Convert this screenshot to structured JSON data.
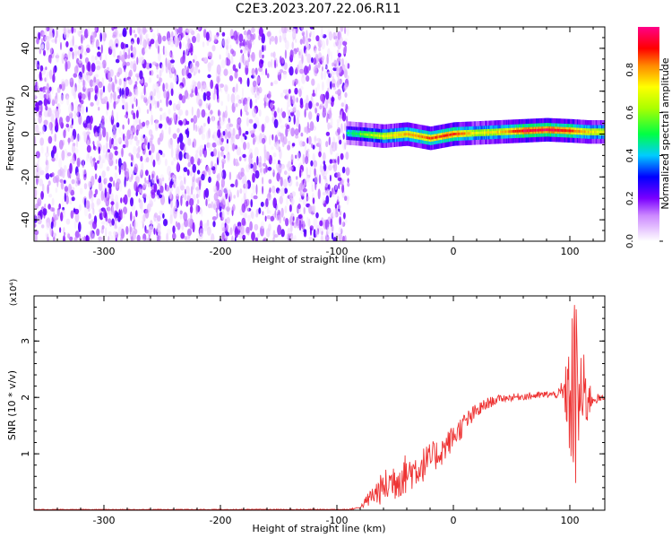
{
  "figure": {
    "title": "C2E3.2023.207.22.06.R11"
  },
  "chart_data": [
    {
      "type": "heatmap",
      "xlabel": "Height of straight line (km)",
      "ylabel": "Frequency (Hz)",
      "xlim": [
        -360,
        130
      ],
      "ylim": [
        -50,
        50
      ],
      "x_ticks": [
        -300,
        -200,
        -100,
        0,
        100
      ],
      "x_tick_labels": [
        "-300",
        "-200",
        "-100",
        "0",
        "100"
      ],
      "y_ticks": [
        40,
        20,
        0,
        -20,
        -40
      ],
      "y_tick_labels": [
        "40",
        "20",
        "0",
        "-20",
        "-40"
      ],
      "noise_region_x": [
        -360,
        -90
      ],
      "signal_line": {
        "x": [
          -92,
          -80,
          -60,
          -40,
          -20,
          0,
          20,
          40,
          60,
          80,
          100,
          115,
          130
        ],
        "freq": [
          0.5,
          0,
          -1,
          0,
          -2,
          0,
          0.5,
          1,
          1.5,
          2,
          1.5,
          1,
          1
        ],
        "amplitude": [
          0.45,
          0.55,
          0.7,
          0.8,
          0.85,
          0.9,
          0.7,
          0.75,
          0.95,
          0.95,
          0.9,
          0.75,
          0.7
        ]
      },
      "colorbar": {
        "label": "Normalized spectral amplitude",
        "range": [
          0,
          1
        ],
        "ticks": [
          0.0,
          0.2,
          0.4,
          0.6,
          0.8
        ],
        "tick_labels": [
          "0.0",
          "0.2",
          "0.4",
          "0.6",
          "0.8"
        ],
        "stops": [
          {
            "v": 0.0,
            "color": "#ffffff"
          },
          {
            "v": 0.12,
            "color": "#cc88ff"
          },
          {
            "v": 0.2,
            "color": "#7a00ff"
          },
          {
            "v": 0.3,
            "color": "#0000ff"
          },
          {
            "v": 0.4,
            "color": "#00ccff"
          },
          {
            "v": 0.5,
            "color": "#00ff44"
          },
          {
            "v": 0.62,
            "color": "#aaff00"
          },
          {
            "v": 0.72,
            "color": "#ffff00"
          },
          {
            "v": 0.82,
            "color": "#ff8800"
          },
          {
            "v": 0.9,
            "color": "#ff0000"
          },
          {
            "v": 1.0,
            "color": "#ff0088"
          }
        ]
      }
    },
    {
      "type": "line",
      "xlabel": "Height of straight line (km)",
      "ylabel": "SNR (10 * v/v)",
      "y_multiplier_label": "(x10⁴)",
      "xlim": [
        -360,
        130
      ],
      "ylim": [
        0,
        3.8
      ],
      "x_ticks": [
        -300,
        -200,
        -100,
        0,
        100
      ],
      "x_tick_labels": [
        "-300",
        "-200",
        "-100",
        "0",
        "100"
      ],
      "y_ticks": [
        1,
        2,
        3
      ],
      "y_tick_labels": [
        "1",
        "2",
        "3"
      ],
      "series": [
        {
          "color": "#ee3333",
          "envelope": {
            "x": [
              -360,
              -90,
              -80,
              -70,
              -60,
              -50,
              -40,
              -30,
              -20,
              -10,
              0,
              10,
              20,
              30,
              40,
              50,
              60,
              70,
              80,
              90,
              95,
              100,
              105,
              110,
              115,
              120,
              130
            ],
            "y": [
              0.01,
              0.01,
              0.05,
              0.25,
              0.4,
              0.55,
              0.65,
              0.75,
              0.9,
              1.05,
              1.3,
              1.55,
              1.75,
              1.9,
              1.98,
              2.0,
              2.02,
              2.03,
              2.05,
              2.05,
              2.05,
              2.0,
              2.0,
              2.0,
              1.98,
              1.98,
              1.98
            ]
          },
          "noise_amplitude": {
            "x": [
              -360,
              -80,
              -70,
              -50,
              -30,
              -10,
              10,
              30,
              40,
              90,
              98,
              103,
              108,
              112,
              116,
              120,
              130
            ],
            "y": [
              0.005,
              0.01,
              0.15,
              0.3,
              0.25,
              0.2,
              0.15,
              0.08,
              0.05,
              0.05,
              0.5,
              1.6,
              1.0,
              0.6,
              0.3,
              0.08,
              0.04
            ]
          }
        }
      ]
    }
  ]
}
